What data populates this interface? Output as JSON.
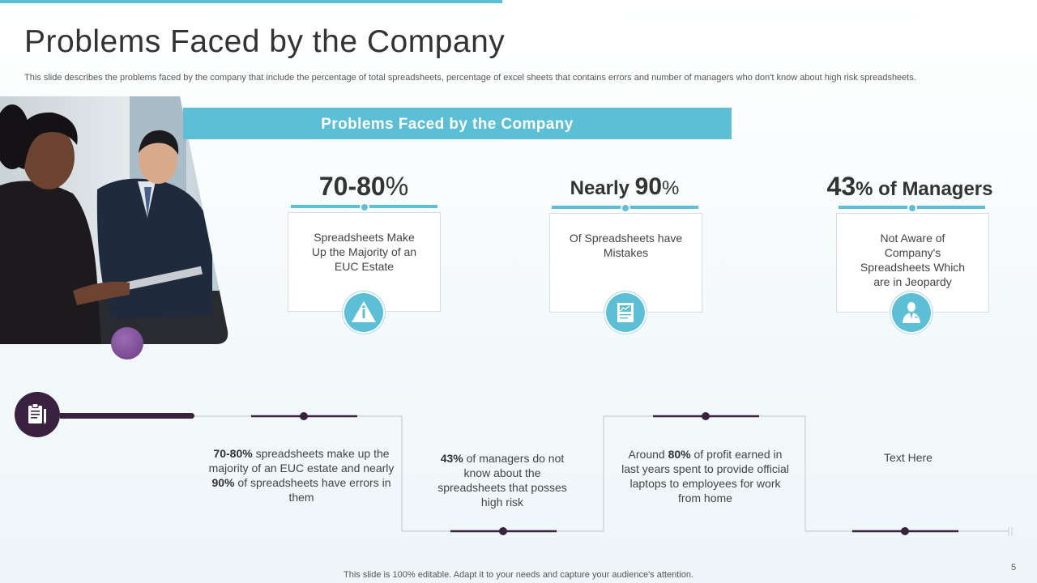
{
  "header": {
    "title": "Problems Faced by the Company",
    "subtitle": "This slide describes the problems faced by the company that include the percentage of total spreadsheets, percentage of excel sheets that contains errors and number of managers who don't know about high risk spreadsheets."
  },
  "banner": {
    "label": "Problems Faced by the Company"
  },
  "stats": [
    {
      "big": "70-80",
      "small": "%",
      "suffix": "",
      "description": "Spreadsheets Make Up the Majority of an EUC Estate",
      "icon": "warning-icon"
    },
    {
      "prefix": "Nearly ",
      "big": "90",
      "small": "%",
      "suffix": "",
      "description": "Of Spreadsheets have Mistakes",
      "icon": "spreadsheet-chart-icon"
    },
    {
      "big": "43",
      "small": "% of Managers",
      "suffix": "",
      "description": "Not Aware of Company's Spreadsheets Which are in Jeopardy",
      "icon": "manager-icon"
    }
  ],
  "timeline": {
    "icon": "clipboard-icon",
    "steps": [
      {
        "bold1": "70-80%",
        "t1": " spreadsheets make up the majority of an EUC estate and nearly ",
        "bold2": "90%",
        "t2": " of spreadsheets have errors in them"
      },
      {
        "bold1": "43%",
        "t1": " of managers do not know about the spreadsheets that posses high risk"
      },
      {
        "t0": "Around ",
        "bold1": "80%",
        "t1": " of profit earned in last years spent to provide official laptops to employees for work from home"
      },
      {
        "t1": "Text Here"
      }
    ]
  },
  "footer": {
    "note": "This slide is 100% editable. Adapt it to your needs and capture your audience's attention.",
    "page_number": "5"
  },
  "colors": {
    "accent": "#5cbfd6",
    "dark": "#3a2140",
    "purple": "#7a4a95"
  }
}
